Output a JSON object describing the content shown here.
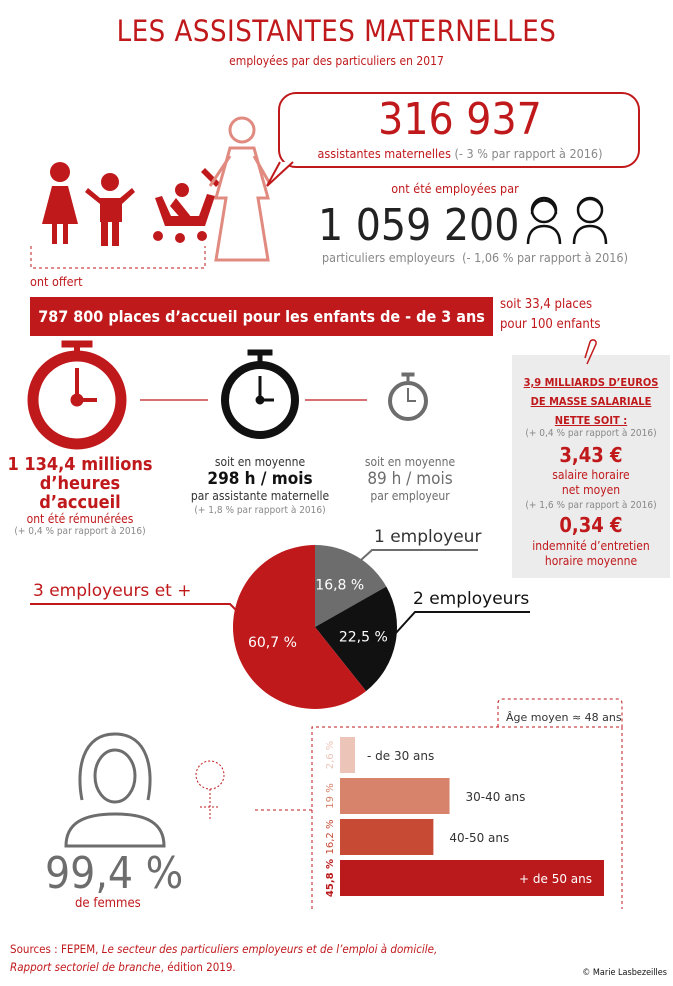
{
  "header": {
    "title": "LES ASSISTANTES MATERNELLES",
    "subtitle": "employées par des particuliers en 2017"
  },
  "assistantes": {
    "value": "316 937",
    "label": "assistantes maternelles",
    "change": "(- 3 % par rapport à 2016)"
  },
  "link_text": "ont été employées par",
  "employeurs": {
    "value": "1 059 200",
    "label": "particuliers employeurs",
    "change": "(- 1,06 % par rapport à 2016)"
  },
  "offert": "ont offert",
  "banner": "787 800 places d’accueil pour les enfants de - de 3 ans",
  "places": {
    "line1": "soit 33,4 places",
    "line2": "pour 100 enfants"
  },
  "hours": {
    "total": {
      "line1": "1 134,4 millions",
      "line2": "d’heures d’accueil",
      "line3": "ont été rémunérées",
      "change": "(+ 0,4 % par rapport à 2016)"
    },
    "per_assistante": {
      "pre": "soit en moyenne",
      "value": "298 h / mois",
      "label": "par assistante maternelle",
      "change": "(+ 1,8 % par rapport à 2016)"
    },
    "per_employeur": {
      "pre": "soit en moyenne",
      "value": "89 h / mois",
      "label": "par employeur"
    }
  },
  "salary_box": {
    "heading": [
      "3,9 MILLIARDS D’EUROS",
      "DE MASSE SALARIALE",
      "NETTE SOIT :"
    ],
    "change1": "(+ 0,4 % par rapport à 2016)",
    "wage": "3,43 €",
    "wage_label": [
      "salaire horaire",
      "net moyen"
    ],
    "change2": "(+ 1,6 % par rapport à 2016)",
    "indemnite": "0,34 €",
    "indemnite_label": [
      "indemnité d’entretien",
      "horaire moyenne"
    ]
  },
  "colors": {
    "red": "#c0191c",
    "gray": "#6d6d6d",
    "black": "#111111",
    "light_gray": "#ececec"
  },
  "chart_data": [
    {
      "type": "pie",
      "slices": [
        {
          "label": "1 employeur",
          "value": 16.8,
          "value_label": "16,8 %",
          "color": "#6d6d6d"
        },
        {
          "label": "2 employeurs",
          "value": 22.5,
          "value_label": "22,5 %",
          "color": "#111111"
        },
        {
          "label": "3 employeurs et +",
          "value": 60.7,
          "value_label": "60,7 %",
          "color": "#c0191c"
        }
      ]
    },
    {
      "type": "bar",
      "orientation": "horizontal",
      "annotation": "Âge moyen ≈ 48 ans",
      "categories": [
        "- de 30 ans",
        "30-40 ans",
        "40-50 ans",
        "+ de 50 ans"
      ],
      "values": [
        2.6,
        19,
        16.2,
        45.8
      ],
      "value_labels": [
        "2,6 %",
        "19 %",
        "16,2 %",
        "45,8 %"
      ],
      "colors": [
        "#ecc4b8",
        "#d7826a",
        "#c74a35",
        "#bb1a1c"
      ]
    }
  ],
  "femmes": {
    "value": "99,4 %",
    "label": "de femmes"
  },
  "sources": {
    "prefix": "Sources : FEPEM, ",
    "title1": "Le secteur des particuliers employeurs et de l’emploi à domicile,",
    "title2": "Rapport sectoriel de branche",
    "suffix": ", édition 2019."
  },
  "credit": "© Marie Lasbezeilles"
}
